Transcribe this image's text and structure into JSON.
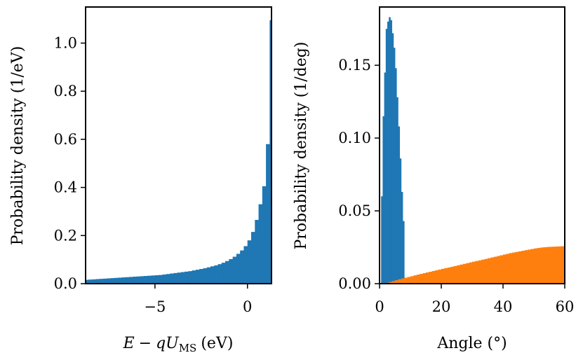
{
  "chart_data": [
    {
      "type": "bar",
      "id": "energy",
      "xlabel_parts": {
        "e": "E",
        "minus": "−",
        "q": "q",
        "u": "U",
        "sub": "MS",
        "unit": "(eV)"
      },
      "ylabel": "Probability density (1/eV)",
      "xlim": [
        -8.75,
        1.3
      ],
      "ylim": [
        0,
        1.15
      ],
      "xticks": [
        {
          "value": -5,
          "label": "−5"
        },
        {
          "value": 0,
          "label": "0"
        }
      ],
      "yticks": [
        {
          "value": 0,
          "label": "0.0"
        },
        {
          "value": 0.2,
          "label": "0.2"
        },
        {
          "value": 0.4,
          "label": "0.4"
        },
        {
          "value": 0.6,
          "label": "0.6"
        },
        {
          "value": 0.8,
          "label": "0.8"
        },
        {
          "value": 1.0,
          "label": "1.0"
        }
      ],
      "bin_width": 0.2,
      "bin_start": -8.8,
      "series": [
        {
          "name": "energy",
          "color": "#1f77b4",
          "values": [
            0.016,
            0.017,
            0.018,
            0.019,
            0.02,
            0.021,
            0.022,
            0.023,
            0.024,
            0.025,
            0.026,
            0.027,
            0.028,
            0.029,
            0.03,
            0.031,
            0.032,
            0.033,
            0.034,
            0.035,
            0.036,
            0.038,
            0.04,
            0.042,
            0.044,
            0.046,
            0.048,
            0.05,
            0.052,
            0.055,
            0.058,
            0.061,
            0.064,
            0.068,
            0.072,
            0.076,
            0.081,
            0.087,
            0.094,
            0.102,
            0.112,
            0.124,
            0.138,
            0.156,
            0.18,
            0.215,
            0.265,
            0.33,
            0.405,
            0.58,
            1.095
          ]
        }
      ]
    },
    {
      "type": "bar",
      "id": "angle",
      "xlabel": "Angle (°)",
      "ylabel": "Probability density (1/deg)",
      "xlim": [
        0,
        60
      ],
      "ylim": [
        0,
        0.19
      ],
      "xticks": [
        {
          "value": 0,
          "label": "0"
        },
        {
          "value": 20,
          "label": "20"
        },
        {
          "value": 40,
          "label": "40"
        },
        {
          "value": 60,
          "label": "60"
        }
      ],
      "yticks": [
        {
          "value": 0,
          "label": "0.00"
        },
        {
          "value": 0.05,
          "label": "0.05"
        },
        {
          "value": 0.1,
          "label": "0.10"
        },
        {
          "value": 0.15,
          "label": "0.15"
        }
      ],
      "series": [
        {
          "name": "blue",
          "color": "#1f77b4",
          "bin_width": 0.5,
          "bin_start": 0.5,
          "values": [
            0.06,
            0.115,
            0.145,
            0.175,
            0.18,
            0.183,
            0.181,
            0.172,
            0.162,
            0.148,
            0.128,
            0.108,
            0.086,
            0.063,
            0.043
          ]
        },
        {
          "name": "orange",
          "color": "#ff7f0e",
          "bin_width": 1,
          "bin_start": 1,
          "values": [
            0.0002,
            0.0006,
            0.0012,
            0.0018,
            0.0024,
            0.003,
            0.0036,
            0.0041,
            0.0046,
            0.0051,
            0.0057,
            0.0062,
            0.0067,
            0.0072,
            0.0077,
            0.0082,
            0.0087,
            0.0092,
            0.0097,
            0.0102,
            0.0107,
            0.0111,
            0.0116,
            0.0121,
            0.0126,
            0.0131,
            0.0136,
            0.0141,
            0.0146,
            0.0151,
            0.0156,
            0.016,
            0.0165,
            0.017,
            0.0175,
            0.018,
            0.0185,
            0.019,
            0.0195,
            0.02,
            0.0205,
            0.021,
            0.0214,
            0.0218,
            0.0222,
            0.0226,
            0.023,
            0.0234,
            0.0238,
            0.0242,
            0.0245,
            0.0248,
            0.025,
            0.0252,
            0.0253,
            0.0254,
            0.0255,
            0.0256,
            0.0257
          ]
        }
      ]
    }
  ]
}
